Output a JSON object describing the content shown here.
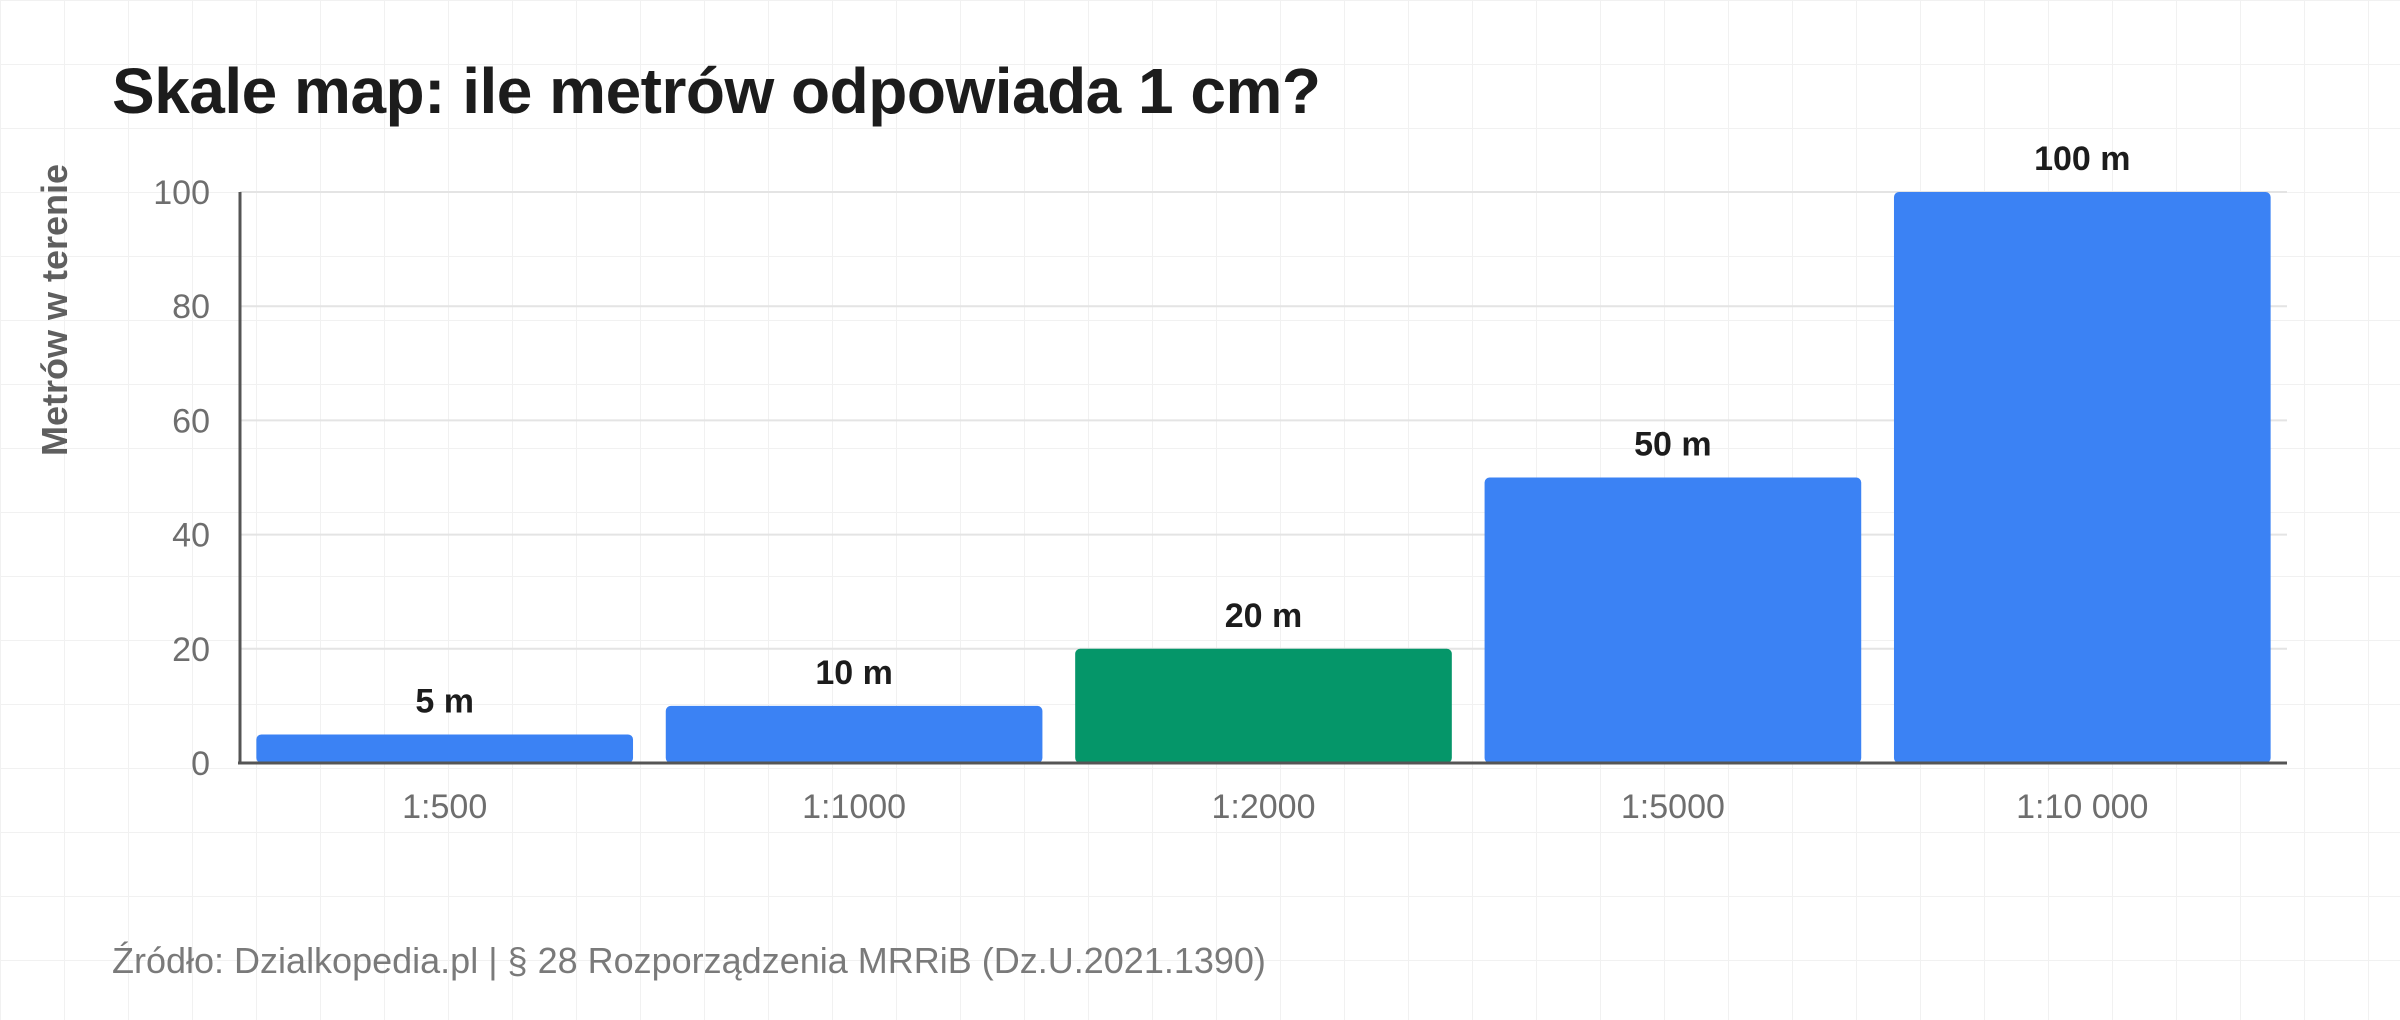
{
  "page": {
    "title": "Skale map: ile metrów odpowiada 1 cm?",
    "source": "Źródło: Dzialkopedia.pl | § 28 Rozporządzenia MRRiB (Dz.U.2021.1390)"
  },
  "chart_data": {
    "type": "bar",
    "title": "Skale map: ile metrów odpowiada 1 cm?",
    "xlabel": "",
    "ylabel": "Metrów w terenie",
    "categories": [
      "1:500",
      "1:1000",
      "1:2000",
      "1:5000",
      "1:10 000"
    ],
    "values": [
      5,
      10,
      20,
      50,
      100
    ],
    "data_labels": [
      "5 m",
      "10 m",
      "20 m",
      "50 m",
      "100 m"
    ],
    "ylim": [
      0,
      100
    ],
    "yticks": [
      0,
      20,
      40,
      60,
      80,
      100
    ],
    "grid": true,
    "legend": "none",
    "colors": {
      "default_bar": "#3b82f4",
      "highlight_bar": "#059669",
      "highlight_category": "1:2000"
    }
  }
}
